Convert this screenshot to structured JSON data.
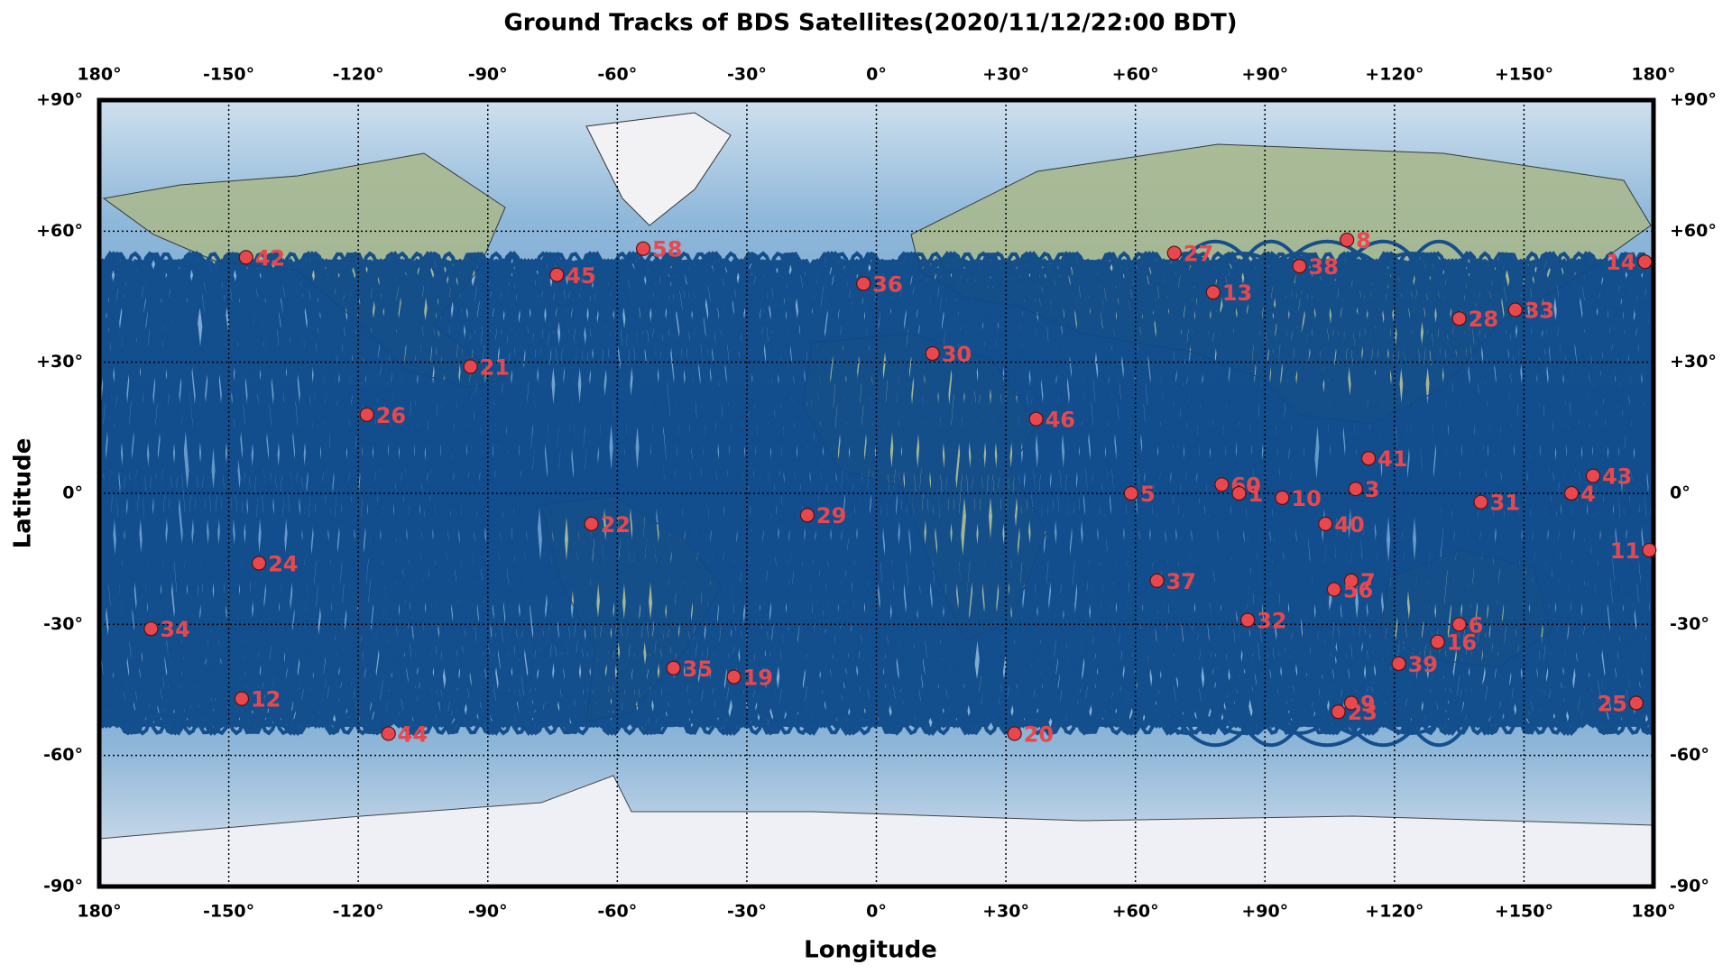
{
  "chart_data": {
    "type": "scatter",
    "title": "Ground Tracks of BDS Satellites(2020/11/12/22:00 BDT)",
    "x_label": "Longitude",
    "y_label": "Latitude",
    "xlim": [
      -180,
      180
    ],
    "ylim": [
      -90,
      90
    ],
    "xticks": [
      {
        "value": -180,
        "label": "180°"
      },
      {
        "value": -150,
        "label": "-150°"
      },
      {
        "value": -120,
        "label": "-120°"
      },
      {
        "value": -90,
        "label": "-90°"
      },
      {
        "value": -60,
        "label": "-60°"
      },
      {
        "value": -30,
        "label": "-30°"
      },
      {
        "value": 0,
        "label": "0°"
      },
      {
        "value": 30,
        "label": "+30°"
      },
      {
        "value": 60,
        "label": "+60°"
      },
      {
        "value": 90,
        "label": "+90°"
      },
      {
        "value": 120,
        "label": "+120°"
      },
      {
        "value": 150,
        "label": "+150°"
      },
      {
        "value": 180,
        "label": "180°"
      }
    ],
    "yticks": [
      {
        "value": -90,
        "label": "-90°"
      },
      {
        "value": -60,
        "label": "-60°"
      },
      {
        "value": -30,
        "label": "-30°"
      },
      {
        "value": 0,
        "label": "0°"
      },
      {
        "value": 30,
        "label": "+30°"
      },
      {
        "value": 60,
        "label": "+60°"
      },
      {
        "value": 90,
        "label": "+90°"
      }
    ],
    "grid": true,
    "point_color": "#e8484d",
    "track_color": "#0e4a8a",
    "points": [
      {
        "label": "42",
        "x": -146,
        "y": 54
      },
      {
        "label": "58",
        "x": -54,
        "y": 56
      },
      {
        "label": "45",
        "x": -74,
        "y": 50
      },
      {
        "label": "36",
        "x": -3,
        "y": 48
      },
      {
        "label": "27",
        "x": 69,
        "y": 55
      },
      {
        "label": "13",
        "x": 78,
        "y": 46
      },
      {
        "label": "8",
        "x": 109,
        "y": 58
      },
      {
        "label": "38",
        "x": 98,
        "y": 52
      },
      {
        "label": "14",
        "x": 178,
        "y": 53
      },
      {
        "label": "28",
        "x": 135,
        "y": 40
      },
      {
        "label": "33",
        "x": 148,
        "y": 42
      },
      {
        "label": "21",
        "x": -94,
        "y": 29
      },
      {
        "label": "30",
        "x": 13,
        "y": 32
      },
      {
        "label": "26",
        "x": -118,
        "y": 18
      },
      {
        "label": "46",
        "x": 37,
        "y": 17
      },
      {
        "label": "41",
        "x": 114,
        "y": 8
      },
      {
        "label": "43",
        "x": 166,
        "y": 4
      },
      {
        "label": "5",
        "x": 59,
        "y": 0
      },
      {
        "label": "60",
        "x": 80,
        "y": 2
      },
      {
        "label": "1",
        "x": 84,
        "y": 0
      },
      {
        "label": "10",
        "x": 94,
        "y": -1
      },
      {
        "label": "3",
        "x": 111,
        "y": 1
      },
      {
        "label": "31",
        "x": 140,
        "y": -2
      },
      {
        "label": "4",
        "x": 161,
        "y": 0
      },
      {
        "label": "29",
        "x": -16,
        "y": -5
      },
      {
        "label": "22",
        "x": -66,
        "y": -7
      },
      {
        "label": "40",
        "x": 104,
        "y": -7
      },
      {
        "label": "11",
        "x": 179,
        "y": -13
      },
      {
        "label": "24",
        "x": -143,
        "y": -16
      },
      {
        "label": "7",
        "x": 110,
        "y": -20
      },
      {
        "label": "37",
        "x": 65,
        "y": -20
      },
      {
        "label": "56",
        "x": 106,
        "y": -22
      },
      {
        "label": "32",
        "x": 86,
        "y": -29
      },
      {
        "label": "6",
        "x": 135,
        "y": -30
      },
      {
        "label": "34",
        "x": -168,
        "y": -31
      },
      {
        "label": "16",
        "x": 130,
        "y": -34
      },
      {
        "label": "39",
        "x": 121,
        "y": -39
      },
      {
        "label": "35",
        "x": -47,
        "y": -40
      },
      {
        "label": "19",
        "x": -33,
        "y": -42
      },
      {
        "label": "12",
        "x": -147,
        "y": -47
      },
      {
        "label": "9",
        "x": 110,
        "y": -48
      },
      {
        "label": "25",
        "x": 176,
        "y": -48
      },
      {
        "label": "23",
        "x": 107,
        "y": -50
      },
      {
        "label": "44",
        "x": -113,
        "y": -55
      },
      {
        "label": "20",
        "x": 32,
        "y": -55
      }
    ]
  }
}
